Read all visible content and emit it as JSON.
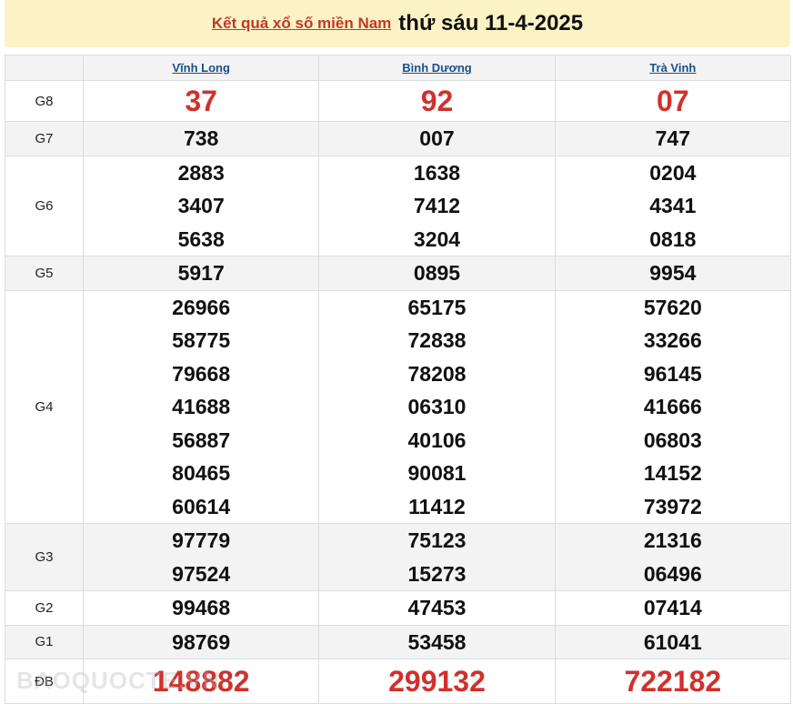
{
  "header": {
    "link": "Kết quả xổ số miền Nam",
    "date": "thứ sáu 11-4-2025"
  },
  "provinces": [
    "Vĩnh Long",
    "Bình Dương",
    "Trà Vinh"
  ],
  "prizes": [
    {
      "label": "G8",
      "style": "big",
      "values": [
        [
          "37"
        ],
        [
          "92"
        ],
        [
          "07"
        ]
      ]
    },
    {
      "label": "G7",
      "style": "num",
      "values": [
        [
          "738"
        ],
        [
          "007"
        ],
        [
          "747"
        ]
      ]
    },
    {
      "label": "G6",
      "style": "num",
      "values": [
        [
          "2883",
          "3407",
          "5638"
        ],
        [
          "1638",
          "7412",
          "3204"
        ],
        [
          "0204",
          "4341",
          "0818"
        ]
      ]
    },
    {
      "label": "G5",
      "style": "num",
      "values": [
        [
          "5917"
        ],
        [
          "0895"
        ],
        [
          "9954"
        ]
      ]
    },
    {
      "label": "G4",
      "style": "num",
      "values": [
        [
          "26966",
          "58775",
          "79668",
          "41688",
          "56887",
          "80465",
          "60614"
        ],
        [
          "65175",
          "72838",
          "78208",
          "06310",
          "40106",
          "90081",
          "11412"
        ],
        [
          "57620",
          "33266",
          "96145",
          "41666",
          "06803",
          "14152",
          "73972"
        ]
      ]
    },
    {
      "label": "G3",
      "style": "num",
      "values": [
        [
          "97779",
          "97524"
        ],
        [
          "75123",
          "15273"
        ],
        [
          "21316",
          "06496"
        ]
      ]
    },
    {
      "label": "G2",
      "style": "num",
      "values": [
        [
          "99468"
        ],
        [
          "47453"
        ],
        [
          "07414"
        ]
      ]
    },
    {
      "label": "G1",
      "style": "num",
      "values": [
        [
          "98769"
        ],
        [
          "53458"
        ],
        [
          "61041"
        ]
      ]
    },
    {
      "label": "ĐB",
      "style": "db",
      "values": [
        [
          "148882"
        ],
        [
          "299132"
        ],
        [
          "722182"
        ]
      ]
    }
  ],
  "watermark": "BAOQUOCTE.VN"
}
